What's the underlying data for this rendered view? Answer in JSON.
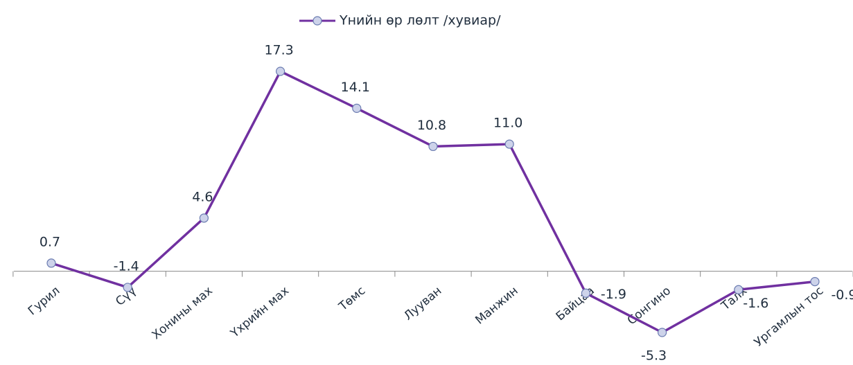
{
  "chart_data": {
    "type": "line",
    "categories": [
      "Гурил",
      "Сүү",
      "Хонины мах",
      "Үхрийн мах",
      "Төмс",
      "Лууван",
      "Манжин",
      "Байцаа",
      "Сонгино",
      "Талх",
      "Ургамлын тос"
    ],
    "series": [
      {
        "name": "Үнийн өр лөлт /хувиар/",
        "color": "#7030a0",
        "values": [
          0.7,
          -1.4,
          4.6,
          17.3,
          14.1,
          10.8,
          11.0,
          -1.9,
          -5.3,
          -1.6,
          -0.9
        ],
        "value_labels": [
          "0.7",
          "-1.4",
          "4.6",
          "17.3",
          "14.1",
          "10.8",
          "11.0",
          "-1.9",
          "-5.3",
          "-1.6",
          "-0.9"
        ]
      }
    ],
    "legend": "top"
  }
}
